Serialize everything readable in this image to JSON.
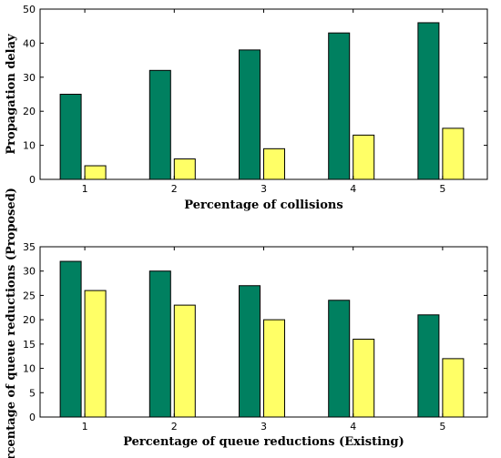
{
  "chart_data": [
    {
      "type": "bar",
      "title": "",
      "xlabel": "Percentage of collisions",
      "ylabel": "Propagation delay",
      "categories": [
        "1",
        "2",
        "3",
        "4",
        "5"
      ],
      "ylim": [
        0,
        50
      ],
      "yticks": [
        0,
        10,
        20,
        30,
        40,
        50
      ],
      "grid": false,
      "series": [
        {
          "values": [
            25,
            32,
            38,
            43,
            46
          ],
          "color": "#008060"
        },
        {
          "values": [
            4,
            6,
            9,
            13,
            15
          ],
          "color": "#ffff66"
        }
      ]
    },
    {
      "type": "bar",
      "title": "",
      "xlabel": "Percentage of queue reductions (Existing)",
      "ylabel": "Percentage of queue reductions (Proposed)",
      "categories": [
        "1",
        "2",
        "3",
        "4",
        "5"
      ],
      "ylim": [
        0,
        35
      ],
      "yticks": [
        0,
        5,
        10,
        15,
        20,
        25,
        30,
        35
      ],
      "grid": false,
      "series": [
        {
          "values": [
            32,
            30,
            27,
            24,
            21
          ],
          "color": "#008060"
        },
        {
          "values": [
            26,
            23,
            20,
            16,
            12
          ],
          "color": "#ffff66"
        }
      ]
    }
  ]
}
